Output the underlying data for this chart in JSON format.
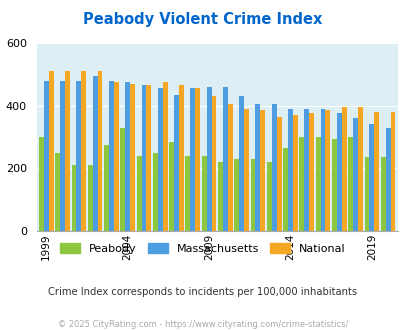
{
  "title": "Peabody Violent Crime Index",
  "years": [
    1999,
    2000,
    2001,
    2002,
    2003,
    2004,
    2005,
    2006,
    2007,
    2008,
    2009,
    2010,
    2011,
    2012,
    2013,
    2014,
    2015,
    2016,
    2017,
    2018,
    2019,
    2020
  ],
  "peabody": [
    300,
    250,
    210,
    210,
    275,
    330,
    240,
    250,
    285,
    240,
    240,
    220,
    230,
    230,
    220,
    265,
    300,
    300,
    295,
    300,
    235,
    235
  ],
  "massachusetts": [
    480,
    480,
    480,
    495,
    480,
    475,
    465,
    455,
    435,
    455,
    460,
    460,
    430,
    405,
    405,
    390,
    390,
    390,
    375,
    360,
    340,
    330
  ],
  "national": [
    510,
    510,
    510,
    510,
    475,
    470,
    465,
    475,
    465,
    455,
    430,
    405,
    390,
    385,
    365,
    370,
    375,
    385,
    395,
    395,
    380,
    380
  ],
  "peabody_color": "#8dc63f",
  "massachusetts_color": "#4d9de0",
  "national_color": "#f5a623",
  "bg_color": "#ddeef5",
  "ylim": [
    0,
    600
  ],
  "yticks": [
    0,
    200,
    400,
    600
  ],
  "xlabel_ticks": [
    1999,
    2004,
    2009,
    2014,
    2019
  ],
  "title_color": "#0066cc",
  "subtitle": "Crime Index corresponds to incidents per 100,000 inhabitants",
  "footer": "© 2025 CityRating.com - https://www.cityrating.com/crime-statistics/",
  "subtitle_color": "#333333",
  "footer_color": "#aaaaaa",
  "legend_labels": [
    "Peabody",
    "Massachusetts",
    "National"
  ]
}
